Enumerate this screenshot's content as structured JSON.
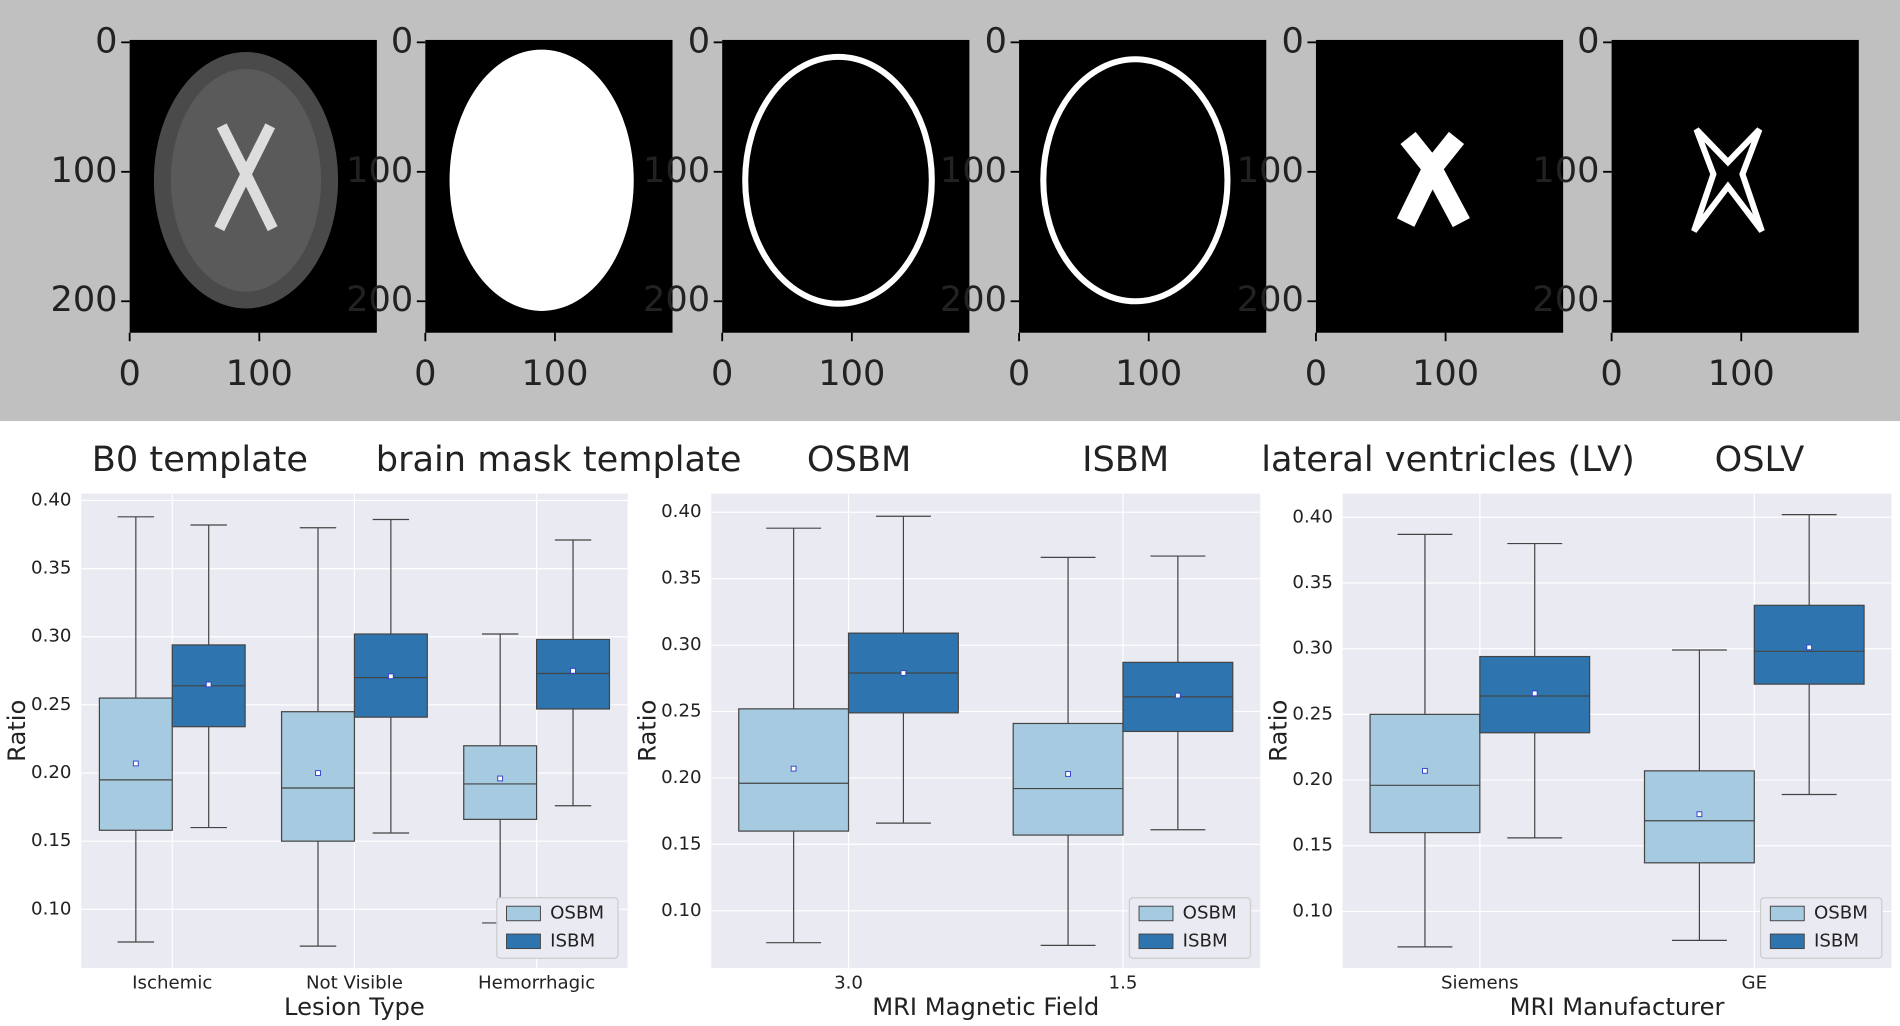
{
  "panels": {
    "titles": [
      "B0 template",
      "brain mask template",
      "OSBM",
      "ISBM",
      "lateral ventricles (LV)",
      "OSLV"
    ],
    "yticks": [
      0,
      100,
      200
    ],
    "xticks": [
      0,
      100
    ]
  },
  "chart_data": [
    {
      "type": "box",
      "xlabel": "Lesion Type",
      "ylabel": "Ratio",
      "categories": [
        "Ischemic",
        "Not Visible",
        "Hemorrhagic"
      ],
      "ylim": [
        0.057,
        0.405
      ],
      "yticks": [
        {
          "value": 0.1,
          "label": "0.10"
        },
        0.15,
        {
          "value": 0.2,
          "label": "0.20"
        },
        0.25,
        {
          "value": 0.3,
          "label": "0.30"
        },
        0.35,
        {
          "value": 0.4,
          "label": "0.40"
        }
      ],
      "grid": true,
      "legend": "lower right",
      "series": [
        {
          "name": "OSBM",
          "color": "#a6cbe0",
          "boxes": [
            {
              "low": 0.076,
              "q1": 0.158,
              "median": 0.195,
              "q3": 0.255,
              "high": 0.388,
              "mean": 0.207
            },
            {
              "low": 0.073,
              "q1": 0.15,
              "median": 0.189,
              "q3": 0.245,
              "high": 0.38,
              "mean": 0.2
            },
            {
              "low": 0.09,
              "q1": 0.166,
              "median": 0.192,
              "q3": 0.22,
              "high": 0.302,
              "mean": 0.196
            }
          ]
        },
        {
          "name": "ISBM",
          "color": "#2e75b0",
          "boxes": [
            {
              "low": 0.16,
              "q1": 0.234,
              "median": 0.264,
              "q3": 0.294,
              "high": 0.382,
              "mean": 0.265
            },
            {
              "low": 0.156,
              "q1": 0.241,
              "median": 0.27,
              "q3": 0.302,
              "high": 0.386,
              "mean": 0.271
            },
            {
              "low": 0.176,
              "q1": 0.247,
              "median": 0.273,
              "q3": 0.298,
              "high": 0.371,
              "mean": 0.275
            }
          ]
        }
      ]
    },
    {
      "type": "box",
      "xlabel": "MRI Magnetic Field",
      "ylabel": "Ratio",
      "categories": [
        "3.0",
        "1.5"
      ],
      "ylim": [
        0.057,
        0.414
      ],
      "yticks": [
        {
          "value": 0.1,
          "label": "0.10"
        },
        0.15,
        {
          "value": 0.2,
          "label": "0.20"
        },
        0.25,
        {
          "value": 0.3,
          "label": "0.30"
        },
        0.35,
        {
          "value": 0.4,
          "label": "0.40"
        }
      ],
      "grid": true,
      "legend": "lower right",
      "series": [
        {
          "name": "OSBM",
          "color": "#a6cbe0",
          "boxes": [
            {
              "low": 0.076,
              "q1": 0.16,
              "median": 0.196,
              "q3": 0.252,
              "high": 0.388,
              "mean": 0.207
            },
            {
              "low": 0.074,
              "q1": 0.157,
              "median": 0.192,
              "q3": 0.241,
              "high": 0.366,
              "mean": 0.203
            }
          ]
        },
        {
          "name": "ISBM",
          "color": "#2e75b0",
          "boxes": [
            {
              "low": 0.166,
              "q1": 0.249,
              "median": 0.279,
              "q3": 0.309,
              "high": 0.397,
              "mean": 0.279
            },
            {
              "low": 0.161,
              "q1": 0.235,
              "median": 0.261,
              "q3": 0.287,
              "high": 0.367,
              "mean": 0.262
            }
          ]
        }
      ]
    },
    {
      "type": "box",
      "xlabel": "MRI Manufacturer",
      "ylabel": "Ratio",
      "categories": [
        "Siemens",
        "GE"
      ],
      "ylim": [
        0.057,
        0.418
      ],
      "yticks": [
        {
          "value": 0.1,
          "label": "0.10"
        },
        0.15,
        {
          "value": 0.2,
          "label": "0.20"
        },
        0.25,
        {
          "value": 0.3,
          "label": "0.30"
        },
        0.35,
        {
          "value": 0.4,
          "label": "0.40"
        }
      ],
      "grid": true,
      "legend": "lower right",
      "series": [
        {
          "name": "OSBM",
          "color": "#a6cbe0",
          "boxes": [
            {
              "low": 0.073,
              "q1": 0.16,
              "median": 0.196,
              "q3": 0.25,
              "high": 0.387,
              "mean": 0.207
            },
            {
              "low": 0.078,
              "q1": 0.137,
              "median": 0.169,
              "q3": 0.207,
              "high": 0.299,
              "mean": 0.174
            }
          ]
        },
        {
          "name": "ISBM",
          "color": "#2e75b0",
          "boxes": [
            {
              "low": 0.156,
              "q1": 0.236,
              "median": 0.264,
              "q3": 0.294,
              "high": 0.38,
              "mean": 0.266
            },
            {
              "low": 0.189,
              "q1": 0.273,
              "median": 0.298,
              "q3": 0.333,
              "high": 0.402,
              "mean": 0.301
            }
          ]
        }
      ]
    }
  ]
}
